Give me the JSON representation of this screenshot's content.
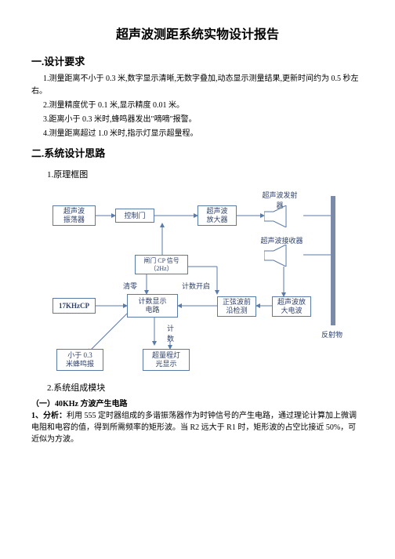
{
  "title": "超声波测距系统实物设计报告",
  "sec1": {
    "head": "一.设计要求",
    "p1": "1.测量距离不小于 0.3 米,数字显示清晰,无数字叠加,动态显示测量结果,更新时间约为 0.5 秒左右。",
    "p2": "2.测量精度优于 0.1 米,显示精度 0.01 米。",
    "p3": "3.距离小于 0.3 米时,蜂鸣器发出\"嘀嘀\"报警。",
    "p4": "4.测量距离超过 1.0 米时,指示灯显示超量程。"
  },
  "sec2": {
    "head": "二.系统设计思路",
    "sub1": "1.原理框图",
    "sub2": "2.系统组成模块",
    "sub3": "（一）40KHz 方波产生电路",
    "p_analysis_label": "1、分析：",
    "p_analysis": "利用 555 定时器组成的多谐振荡器作为时钟信号的产生电路，通过理论计算加上微调电阻和电容的值，得到所需频率的矩形波。当 R2 远大于 R1 时，矩形波的占空比接近 50%，可近似为方波。"
  },
  "diagram": {
    "oscillator": "超声波\n振荡器",
    "gate": "控制门",
    "amp": "超声波\n放大器",
    "tx": "超声波发射\n器",
    "rx": "超声波接收器",
    "cp_gate": "闸门 CP 信号\n（2Hz）",
    "clear": "清零",
    "count_open": "计数开启",
    "khz": "17KHzCP",
    "display": "计数显示\n电路",
    "sine": "正弦波前\n沿检测",
    "rx_amp": "超声波放\n大电波",
    "count": "计\n数",
    "buzzer": "小于 0.3\n米蜂鸣报",
    "overrange": "超量程灯\n光显示",
    "reflector": "反射物",
    "colors": {
      "box_border": "#5a7aa8",
      "text": "#30426a",
      "wire": "#5a7aa8",
      "wall": "#7a8aa8"
    }
  }
}
